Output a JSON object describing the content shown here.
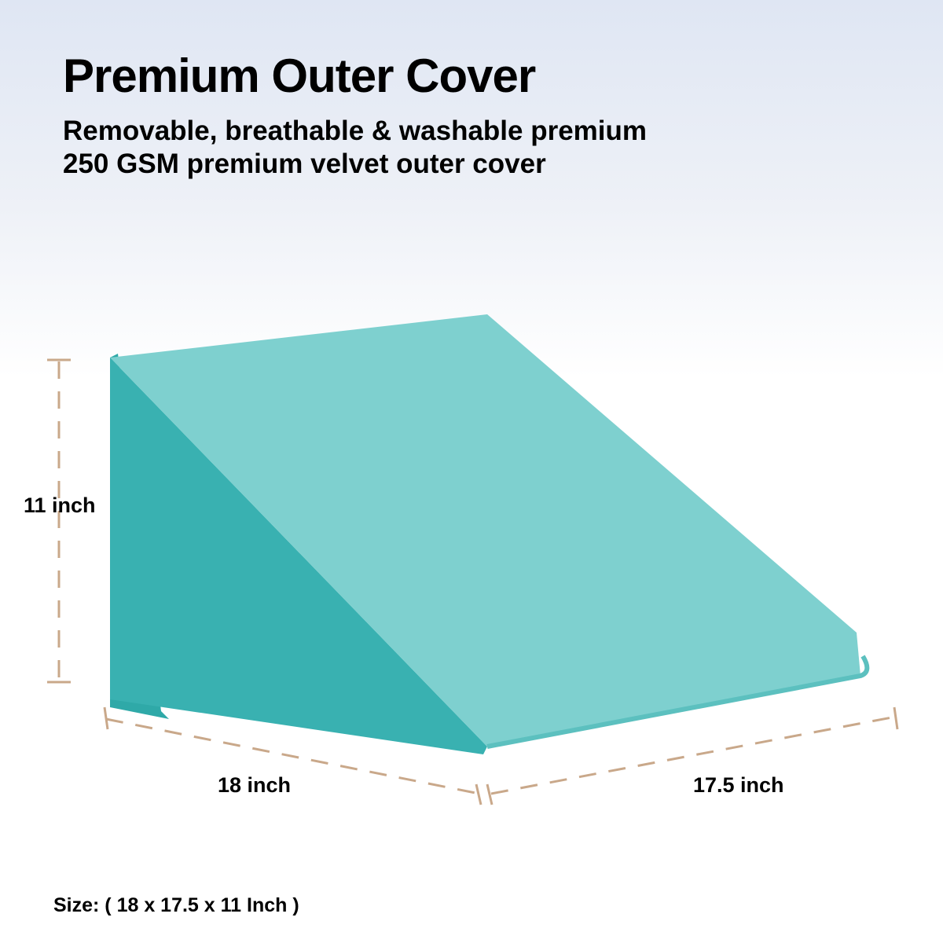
{
  "header": {
    "title": "Premium Outer Cover",
    "subtitle_lines": [
      "Removable, breathable & washable premium",
      "250 GSM premium velvet outer cover"
    ]
  },
  "dimensions": {
    "height": "11 inch",
    "width": "18 inch",
    "depth": "17.5 inch"
  },
  "footer": {
    "size": "Size: ( 18 x 17.5 x 11 Inch )"
  }
}
